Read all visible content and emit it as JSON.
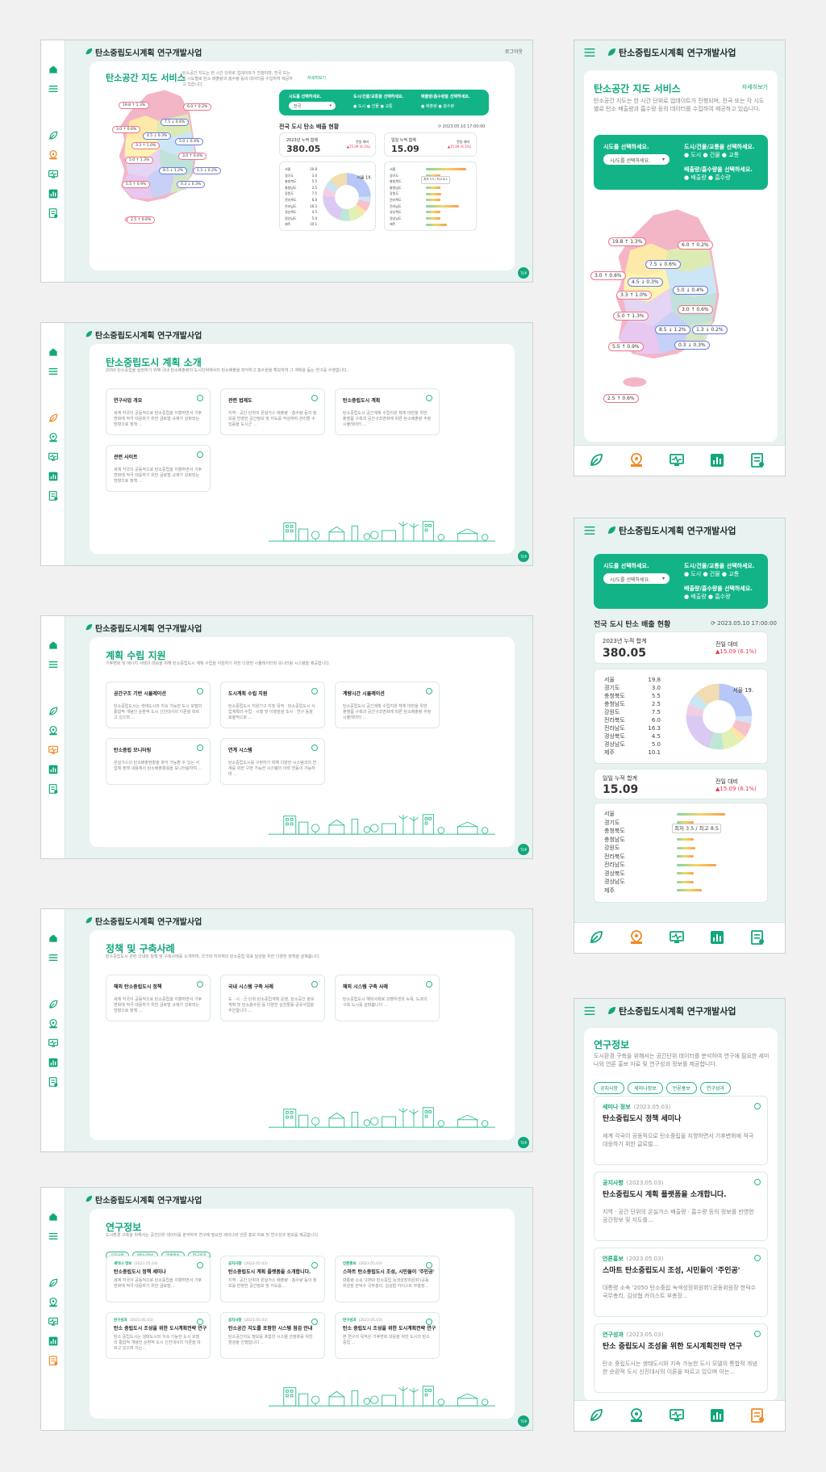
{
  "app": {
    "title": "탄소중립도시계획 연구개발사업",
    "login": "로그아웃",
    "top": "TOP"
  },
  "map_service": {
    "title": "탄소공간 지도 서비스",
    "desc": "탄소공간 지도는 한 시간 단위로 업데이트가 진행되며, 전국 또는 각 시도별로 탄소 배출량과 흡수량 등의 데이터를 수집하여 제공하고 있습니다.",
    "more": "자세히보기",
    "sido_label": "시도를 선택하세요.",
    "sido_placeholder": "시/도를 선택하세요.",
    "sido_value_d": "전국",
    "type_label": "도시/건물/교통을 선택하세요.",
    "type_options": [
      "도시",
      "건물",
      "교통"
    ],
    "emit_label": "배출량/흡수량을 선택하세요.",
    "emit_options": [
      "배출량",
      "흡수량"
    ],
    "status_title": "전국 도시 탄소 배출 현황",
    "status_time": "2023.05.10 17:00:00",
    "acc_label": "2023년 누적 합계",
    "acc_value": "380.05",
    "day_label": "일일 누적 합계",
    "day_value": "15.09",
    "compare_label": "전일 대비",
    "compare_value": "▲15.09 (6.1%)",
    "regions": [
      {
        "n": "서울",
        "v": "19.8"
      },
      {
        "n": "경기도",
        "v": "3.0"
      },
      {
        "n": "충청북도",
        "v": "5.5"
      },
      {
        "n": "충청남도",
        "v": "2.5"
      },
      {
        "n": "강원도",
        "v": "7.5"
      },
      {
        "n": "전라북도",
        "v": "6.0"
      },
      {
        "n": "전라남도",
        "v": "16.3"
      },
      {
        "n": "경상북도",
        "v": "4.5"
      },
      {
        "n": "경상남도",
        "v": "5.0"
      },
      {
        "n": "제주",
        "v": "10.1"
      }
    ],
    "donut_label": "서울 19.8",
    "bar_tip": "최저 3.5 / 최고 8.5",
    "map_labels": [
      {
        "t": "19.8 ↑ 1.3%",
        "d": "up"
      },
      {
        "t": "6.0 ↑ 0.2%",
        "d": "up"
      },
      {
        "t": "7.5 ↓ 0.6%",
        "d": "dn"
      },
      {
        "t": "3.0 ↑ 0.6%",
        "d": "up"
      },
      {
        "t": "4.5 ↓ 0.3%",
        "d": "dn"
      },
      {
        "t": "3.3 ↑ 1.0%",
        "d": "up"
      },
      {
        "t": "5.0 ↓ 0.4%",
        "d": "dn"
      },
      {
        "t": "3.0 ↑ 0.6%",
        "d": "up"
      },
      {
        "t": "5.0 ↑ 1.3%",
        "d": "up"
      },
      {
        "t": "8.5 ↓ 1.2%",
        "d": "dn"
      },
      {
        "t": "1.3 ↓ 0.2%",
        "d": "dn"
      },
      {
        "t": "5.5 ↑ 0.9%",
        "d": "up"
      },
      {
        "t": "0.3 ↓ 0.3%",
        "d": "dn"
      },
      {
        "t": "2.5 ↑ 0.6%",
        "d": "up"
      }
    ]
  },
  "intro": {
    "title": "탄소중립도시 계획 소개",
    "desc": "2050 탄소중립을 실현하기 위해 국내 탄소배출량의 도시단위에서의 탄소배출을 파악하고 흡수원을 확보하여 그 계획을 돕는 연구를 수행합니다.",
    "cards": [
      {
        "t": "연구사업 개요",
        "d": "세계 각국이 공동적으로 탄소중립을 지향하면서 기후변화에 적극 대응하기 위한 글로벌 규제가 강화되는 방향으로 정책 ..."
      },
      {
        "t": "관련 법제도",
        "d": "지역 · 공간 단위의 온실가스 배출량 · 흡수량 등의 정보를 반영한 공간정보 및 지도를 작성하여 관리할 수 있음을 도시군 ..."
      },
      {
        "t": "탄소중립도시 계획",
        "d": "탄소중립도시 공간계획 수립지원 체계 마련을 위한 플랫폼 구축과 공간구조변화에 따른 탄소배출량 추정 시뮬레이터 ..."
      },
      {
        "t": "관련 사이트",
        "d": "세계 각국이 공동적으로 탄소중립을 지향하면서 기후변화에 적극 대응하기 위한 글로벌 규제가 강화되는 방향으로 정책 ..."
      }
    ]
  },
  "support": {
    "title": "계획 수립 지원",
    "desc": "기후변화 및 에너지 사태의 대응을 위해 탄소중립도시 계획 수립을 지원하기 위한 다양한 시뮬레이터와 모니터링 시스템을 제공합니다.",
    "cards": [
      {
        "t": "공간구조 기반 시뮬레이션",
        "d": "탄소중립도시는 생태도시와 지속 가능한 도시 모델의 통합적 개념인 순환적 도시 신진대사의 이론을 따르고 있으며 ..."
      },
      {
        "t": "도시계획 수립 지원",
        "d": "탄소중립도시 지원기구 지정 목적 · 탄소중립도시 사업계획의 수립 · 시행 및 이행점검 조사 · 연구 등을 효율적으로 ..."
      },
      {
        "t": "계량시간 시뮬레이션",
        "d": "탄소중립도시 공간계획 수립지원 체계 마련을 위한 플랫폼 구축과 공간구조변화에 따른 탄소배출량 추정 시뮬레이터 ..."
      },
      {
        "t": "탄소중립 모니터링",
        "d": "온실가스의 탄소배출현황을 파악 가능할 수 있는 서업체 정책 내용에서 탄소배출활용을 모니터링하여 ..."
      },
      {
        "t": "연계 시스템",
        "d": "탄소중립도시를 구현하기 위해 다양한 시스템과의 연계를 위한 구현 가능한 시스템의 이력 연동이 가능하며 ..."
      }
    ]
  },
  "policy": {
    "title": "정책 및 구축사례",
    "desc": "탄소중립도시 관련 국내외 정책 및 구축사례를 소개하며, 국가와 지자체의 탄소중립 목표 달성을 위한 다양한 정책을 살펴봅니다.",
    "cards": [
      {
        "t": "해외 탄소중립도시 정책",
        "d": "세계 각국이 공동적으로 탄소중립을 지향하면서 기후변화에 적극 대응하기 위한 글로벌 규제가 강화되는 방향으로 정책 ..."
      },
      {
        "t": "국내 시스템 구축 사례",
        "d": "도 · 시 · 군 단위 탄소중립계획 운영, 탄소공간 정보 계획 및 탄소흡수원 등 다양한 실천활동 공유사업을 추진합니다 ..."
      },
      {
        "t": "해외 시스템 구축 사례",
        "d": "탄소중립도시 해외사례로 코펜하겐과 뉴욕, 도쿄의 구축 도시를 살펴봅니다 ..."
      }
    ]
  },
  "research": {
    "title": "연구정보",
    "desc": "도시환경 구축을 위해서는 공간단위 데이터를 분석하여 연구에 필요한 세미나와 언론 홍보 자료 및 연구성과 정보를 제공합니다.",
    "tabs": [
      "공지사항",
      "세미나정보",
      "언론홍보",
      "연구성과"
    ],
    "items": [
      {
        "tag": "세미나 정보",
        "date": "(2023.05.03)",
        "t": "탄소중립도시 정책 세미나",
        "d": "세계 각국이 공동적으로 탄소중립을 지향하면서 기후변화에 적극 대응하기 위한 글로벌..."
      },
      {
        "tag": "공지사항",
        "date": "(2023.05.03)",
        "t": "탄소중립도시 계획 플랫폼을 소개합니다.",
        "d": "지역 · 공간 단위의 온실가스 배출량 · 흡수량 등의 정보를 반영한 공간정보 및 지도를..."
      },
      {
        "tag": "언론홍보",
        "date": "(2023.05.03)",
        "t": "스마트 탄소중립도시 조성, 시민들이 '주인공'",
        "d": "대통령 소속 '2050 탄소중립 녹색성장위원회'(공동위원장 한덕수 국무총리, 김상협 카이스트 부총장..."
      },
      {
        "tag": "연구성과",
        "date": "(2023.05.03)",
        "t": "탄소 중립도시 조성을 위한 도시계획전략 연구",
        "d": "탄소 중립도시는 생태도시와 지속 가능한 도시 모델의 통합적 개념한 순환적 도시 신진대사의 이론을 따르고 있으며 이는..."
      },
      {
        "tag": "공지사항",
        "date": "(2023.05.03)",
        "t": "탄소공간 지도를 포함한 시스템 점검 안내",
        "d": "탄소공간지도 정보를 포함한 시스템 안정화를 위한 점검을 진행합니다 ..."
      },
      {
        "tag": "연구성과",
        "date": "(2023.05.03)",
        "t": "탄소 중립도시 조성을 위한 도시계획전략 연구",
        "d": "본 연구의 목적은 기후변화 대응을 위한 도시의 탄소중립 ..."
      }
    ]
  },
  "colors": {
    "primary": "#12b487",
    "accent": "#f08a24",
    "bg": "#e8f3f1",
    "up": "#e53950",
    "down": "#3d5ad6"
  }
}
